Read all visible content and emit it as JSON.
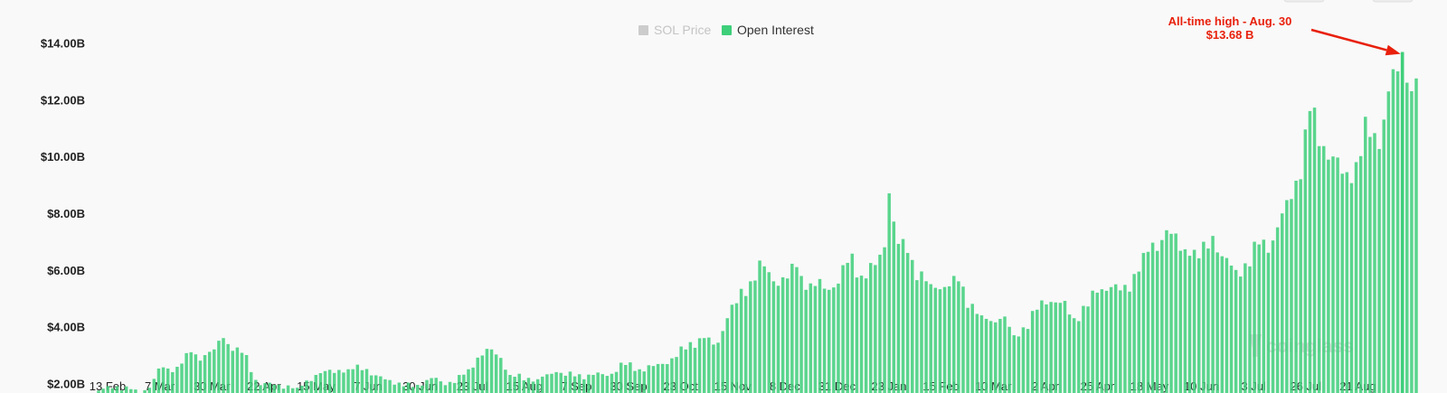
{
  "chart_data": {
    "type": "bar",
    "legend": [
      {
        "name": "SOL Price",
        "color": "#cccccc",
        "active": false
      },
      {
        "name": "Open Interest",
        "color": "#3ecf7a",
        "active": true
      }
    ],
    "legend_placement": "top-center",
    "y_ticks": [
      "$2.00B",
      "$4.00B",
      "$6.00B",
      "$8.00B",
      "$10.00B",
      "$12.00B",
      "$14.00B"
    ],
    "ylim": [
      1.6,
      14.4
    ],
    "x_ticks": [
      "13 Feb",
      "7 Mar",
      "30 Mar",
      "22 Apr",
      "15 May",
      "7 Jun",
      "30 Jun",
      "23 Jul",
      "15 Aug",
      "7 Sep",
      "30 Sep",
      "23 Oct",
      "15 Nov",
      "8 Dec",
      "31 Dec",
      "23 Jan",
      "15 Feb",
      "10 Mar",
      "2 Apr",
      "25 Apr",
      "18 May",
      "10 Jun",
      "3 Jul",
      "26 Jul",
      "21 Aug"
    ],
    "x_start_date": "2023-02-13",
    "x_end_date": "2024-09-05",
    "grid": false,
    "series": [
      {
        "name": "Open Interest",
        "color": "#3ecf7a",
        "unit": "billion USD",
        "anchors": [
          [
            "2023-02-13",
            1.75
          ],
          [
            "2023-02-20",
            1.9
          ],
          [
            "2023-02-27",
            1.8
          ],
          [
            "2023-03-02",
            1.65
          ],
          [
            "2023-03-07",
            1.85
          ],
          [
            "2023-03-12",
            2.6
          ],
          [
            "2023-03-17",
            2.4
          ],
          [
            "2023-03-21",
            2.7
          ],
          [
            "2023-03-25",
            3.1
          ],
          [
            "2023-03-28",
            2.9
          ],
          [
            "2023-03-31",
            3.0
          ],
          [
            "2023-04-04",
            3.2
          ],
          [
            "2023-04-08",
            3.6
          ],
          [
            "2023-04-12",
            3.15
          ],
          [
            "2023-04-17",
            3.1
          ],
          [
            "2023-04-20",
            2.4
          ],
          [
            "2023-04-23",
            2.0
          ],
          [
            "2023-05-01",
            1.95
          ],
          [
            "2023-05-10",
            1.85
          ],
          [
            "2023-05-18",
            2.3
          ],
          [
            "2023-05-25",
            2.45
          ],
          [
            "2023-06-01",
            2.5
          ],
          [
            "2023-06-08",
            2.6
          ],
          [
            "2023-06-12",
            2.25
          ],
          [
            "2023-06-20",
            2.1
          ],
          [
            "2023-06-25",
            1.9
          ],
          [
            "2023-07-01",
            1.95
          ],
          [
            "2023-07-08",
            2.2
          ],
          [
            "2023-07-12",
            2.0
          ],
          [
            "2023-07-18",
            2.1
          ],
          [
            "2023-07-23",
            2.5
          ],
          [
            "2023-07-28",
            3.0
          ],
          [
            "2023-08-02",
            3.2
          ],
          [
            "2023-08-06",
            2.9
          ],
          [
            "2023-08-10",
            2.3
          ],
          [
            "2023-08-15",
            2.2
          ],
          [
            "2023-08-22",
            2.15
          ],
          [
            "2023-08-30",
            2.4
          ],
          [
            "2023-09-07",
            2.25
          ],
          [
            "2023-09-15",
            2.3
          ],
          [
            "2023-09-22",
            2.3
          ],
          [
            "2023-09-28",
            2.7
          ],
          [
            "2023-10-05",
            2.5
          ],
          [
            "2023-10-12",
            2.6
          ],
          [
            "2023-10-20",
            2.9
          ],
          [
            "2023-10-26",
            3.35
          ],
          [
            "2023-11-02",
            3.6
          ],
          [
            "2023-11-07",
            3.3
          ],
          [
            "2023-11-12",
            4.3
          ],
          [
            "2023-11-17",
            5.0
          ],
          [
            "2023-11-22",
            5.6
          ],
          [
            "2023-11-27",
            6.2
          ],
          [
            "2023-12-02",
            5.6
          ],
          [
            "2023-12-08",
            5.7
          ],
          [
            "2023-12-12",
            6.1
          ],
          [
            "2023-12-16",
            5.3
          ],
          [
            "2023-12-21",
            5.5
          ],
          [
            "2023-12-26",
            5.3
          ],
          [
            "2023-12-31",
            5.7
          ],
          [
            "2024-01-04",
            6.5
          ],
          [
            "2024-01-09",
            5.8
          ],
          [
            "2024-01-14",
            6.0
          ],
          [
            "2024-01-19",
            6.8
          ],
          [
            "2024-01-21",
            8.7
          ],
          [
            "2024-01-24",
            7.0
          ],
          [
            "2024-01-29",
            6.6
          ],
          [
            "2024-02-03",
            5.8
          ],
          [
            "2024-02-08",
            5.5
          ],
          [
            "2024-02-14",
            5.4
          ],
          [
            "2024-02-20",
            5.6
          ],
          [
            "2024-02-25",
            4.8
          ],
          [
            "2024-03-01",
            4.4
          ],
          [
            "2024-03-05",
            4.2
          ],
          [
            "2024-03-10",
            4.4
          ],
          [
            "2024-03-15",
            3.7
          ],
          [
            "2024-03-20",
            4.0
          ],
          [
            "2024-03-25",
            4.6
          ],
          [
            "2024-03-30",
            5.0
          ],
          [
            "2024-04-05",
            4.8
          ],
          [
            "2024-04-10",
            4.3
          ],
          [
            "2024-04-15",
            4.7
          ],
          [
            "2024-04-20",
            5.2
          ],
          [
            "2024-04-25",
            5.5
          ],
          [
            "2024-05-01",
            5.2
          ],
          [
            "2024-05-05",
            5.6
          ],
          [
            "2024-05-10",
            6.6
          ],
          [
            "2024-05-15",
            6.8
          ],
          [
            "2024-05-20",
            7.4
          ],
          [
            "2024-05-25",
            6.9
          ],
          [
            "2024-05-30",
            6.5
          ],
          [
            "2024-06-04",
            6.5
          ],
          [
            "2024-06-09",
            7.2
          ],
          [
            "2024-06-14",
            6.3
          ],
          [
            "2024-06-19",
            6.0
          ],
          [
            "2024-06-24",
            6.2
          ],
          [
            "2024-06-29",
            6.9
          ],
          [
            "2024-07-04",
            6.9
          ],
          [
            "2024-07-08",
            7.7
          ],
          [
            "2024-07-13",
            8.5
          ],
          [
            "2024-07-18",
            10.0
          ],
          [
            "2024-07-21",
            11.6
          ],
          [
            "2024-07-26",
            10.5
          ],
          [
            "2024-07-31",
            10.0
          ],
          [
            "2024-08-05",
            9.2
          ],
          [
            "2024-08-10",
            9.8
          ],
          [
            "2024-08-15",
            11.0
          ],
          [
            "2024-08-19",
            10.5
          ],
          [
            "2024-08-22",
            11.3
          ],
          [
            "2024-08-25",
            12.7
          ],
          [
            "2024-08-28",
            13.0
          ],
          [
            "2024-08-30",
            13.68
          ],
          [
            "2024-09-01",
            12.6
          ],
          [
            "2024-09-03",
            12.3
          ],
          [
            "2024-09-05",
            12.75
          ]
        ]
      }
    ],
    "annotation": {
      "line1": "All-time high - Aug. 30",
      "line2": "$13.68 B",
      "date": "2024-08-30",
      "value": 13.68,
      "color": "#e8200c"
    },
    "watermark": "coinglass"
  }
}
